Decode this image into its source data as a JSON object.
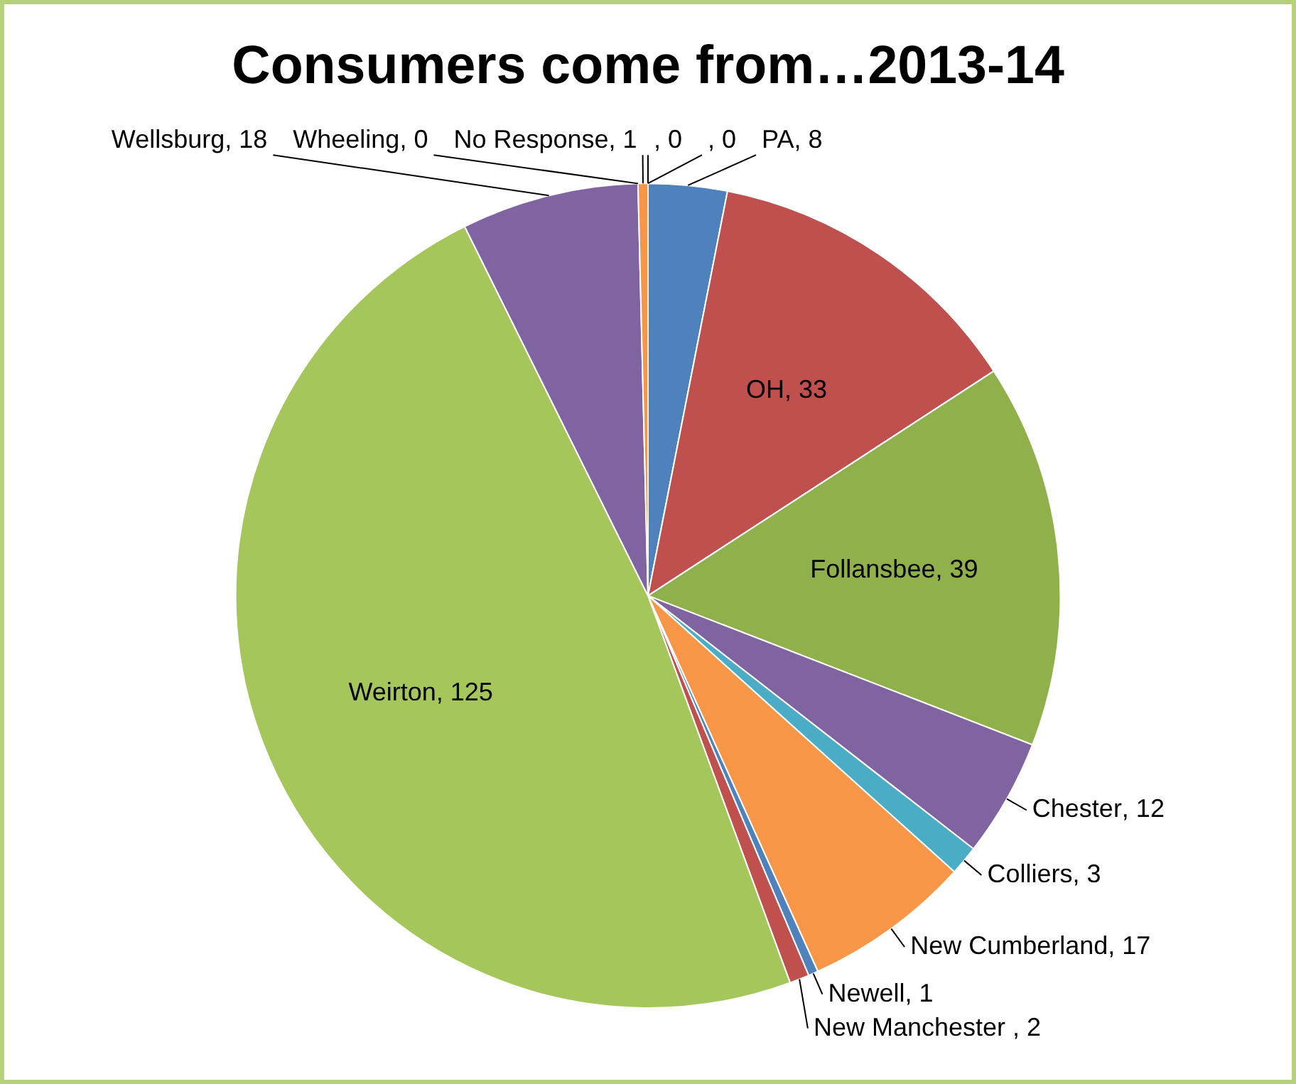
{
  "chart_data": {
    "type": "pie",
    "title": "Consumers come from…2013-14",
    "categories": [
      null,
      null,
      "PA",
      "OH",
      "Follansbee",
      "Chester",
      "Colliers",
      "New Cumberland",
      "Newell",
      "New Manchester ",
      "Weirton",
      "Wellsburg",
      "Wheeling",
      "No Response"
    ],
    "values": [
      0,
      0,
      8,
      33,
      39,
      12,
      3,
      17,
      1,
      2,
      125,
      18,
      0,
      1
    ],
    "value_labels": [
      ", 0",
      ", 0",
      ", 8",
      ", 33",
      ", 39",
      ", 12",
      ", 3",
      ", 17",
      ", 1",
      ", 2",
      ", 125",
      ", 18",
      ", 0",
      ", 1"
    ],
    "colors": [
      "#4f81bd",
      "#c0504d",
      "#4f81bd",
      "#c0504d",
      "#8fb04a",
      "#8064a2",
      "#4bacc6",
      "#f79646",
      "#4f81bd",
      "#c0504d",
      "#a4c65a",
      "#8064a2",
      "#4bacc6",
      "#f79646"
    ],
    "legend": false
  }
}
